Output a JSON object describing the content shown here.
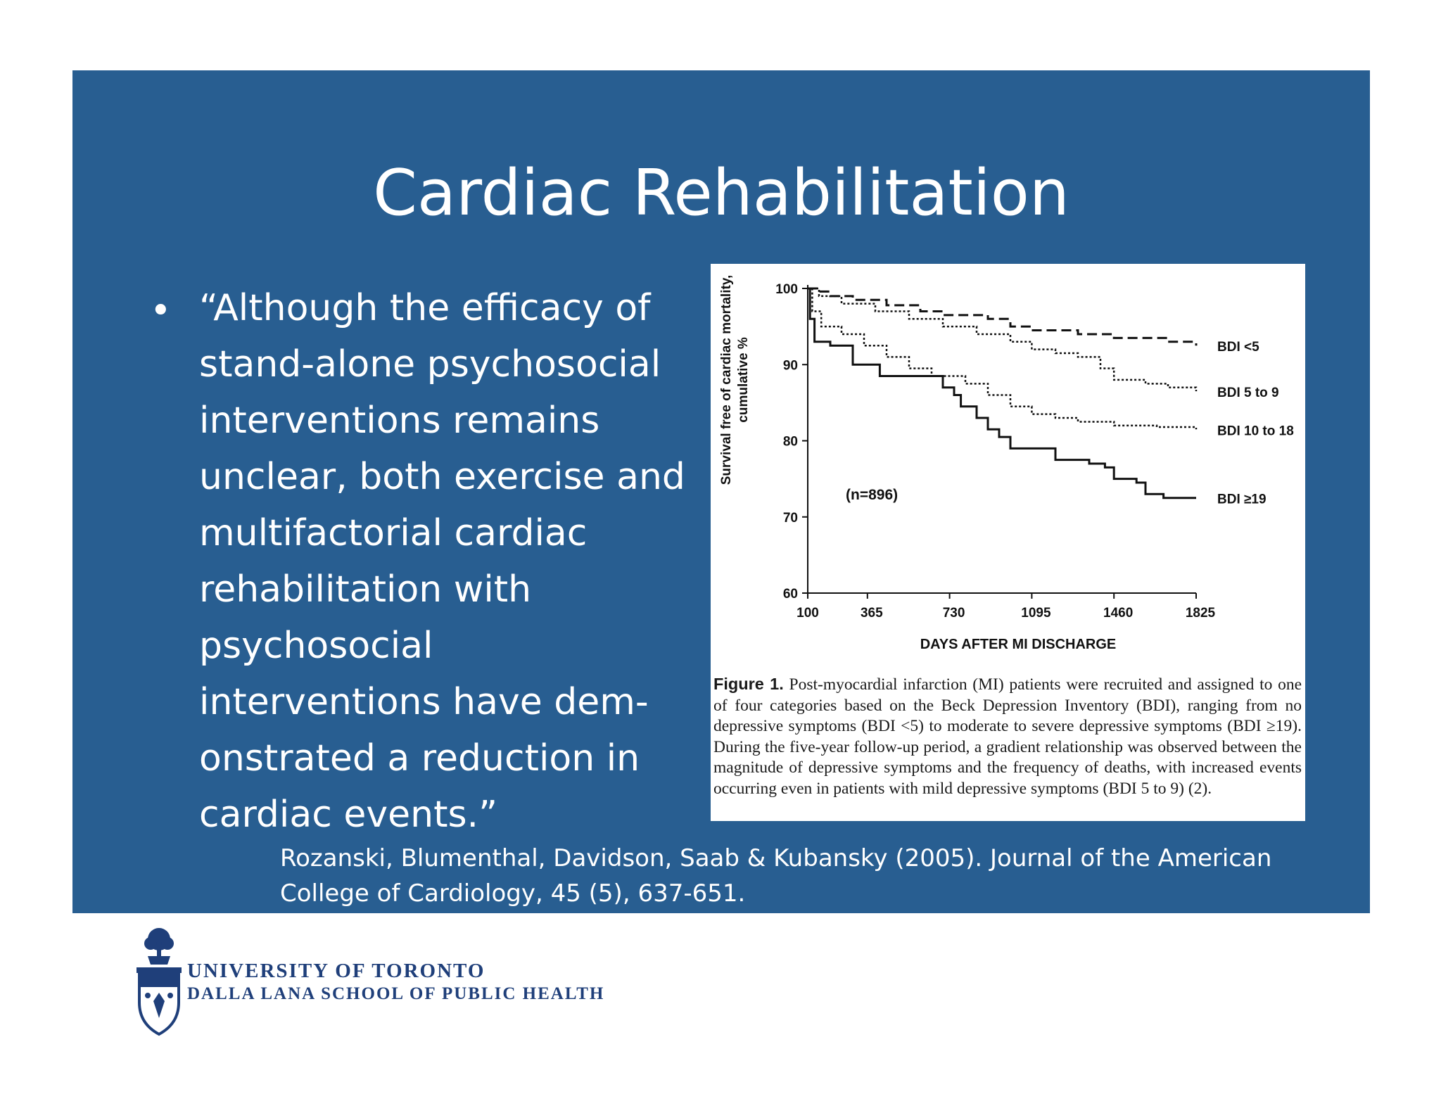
{
  "slide": {
    "title": "Cardiac Rehabilitation",
    "bullet_symbol": "•",
    "quote_lines": [
      "“Although the efficacy of",
      "stand-alone psychosocial",
      "interventions remains",
      "unclear, both exercise and",
      "multifactorial cardiac",
      "rehabilitation with",
      "psychosocial",
      "interventions have dem-",
      "onstrated a reduction in",
      "cardiac events.”"
    ],
    "citation_lines": [
      "Rozanski, Blumenthal, Davidson, Saab & Kubansky (2005). Journal of the American",
      "College of Cardiology, 45 (5), 637-651."
    ],
    "colors": {
      "panel": "#285e91",
      "text": "#ffffff",
      "logo": "#1f3f7a"
    }
  },
  "figure": {
    "caption_label": "Figure 1.",
    "caption_text": "Post-myocardial infarction (MI) patients were recruited and assigned to one of four categories based on the Beck Depression Inventory (BDI), ranging from no depressive symptoms (BDI <5) to moderate to severe depressive symptoms (BDI ≥19). During the five-year follow-up period, a gradient relationship was observed between the magnitude of depressive symptoms and the frequency of deaths, with increased events occurring even in patients with mild depressive symptoms (BDI 5 to 9) (2).",
    "n_label": "(n=896)"
  },
  "chart_data": {
    "type": "line",
    "title": "",
    "xlabel": "DAYS AFTER MI DISCHARGE",
    "ylabel": "Survival free of cardiac mortality, cumulative %",
    "xlim": [
      100,
      1825
    ],
    "ylim": [
      60,
      100
    ],
    "x_ticks": [
      100,
      365,
      730,
      1095,
      1460,
      1825
    ],
    "y_ticks": [
      60,
      70,
      80,
      90,
      100
    ],
    "grid": false,
    "series": [
      {
        "name": "BDI <5",
        "style": "dashed",
        "points": [
          [
            100,
            100
          ],
          [
            140,
            99.6
          ],
          [
            200,
            99
          ],
          [
            300,
            98.5
          ],
          [
            450,
            97.8
          ],
          [
            600,
            97
          ],
          [
            700,
            96.5
          ],
          [
            900,
            96
          ],
          [
            1000,
            95
          ],
          [
            1095,
            94.5
          ],
          [
            1300,
            94
          ],
          [
            1460,
            93.5
          ],
          [
            1700,
            93
          ],
          [
            1825,
            92.5
          ]
        ]
      },
      {
        "name": "BDI 5 to 9",
        "style": "dotted",
        "points": [
          [
            100,
            100
          ],
          [
            150,
            99
          ],
          [
            250,
            98
          ],
          [
            400,
            97
          ],
          [
            550,
            96
          ],
          [
            700,
            95
          ],
          [
            850,
            94
          ],
          [
            1000,
            93
          ],
          [
            1095,
            92
          ],
          [
            1200,
            91.5
          ],
          [
            1300,
            91
          ],
          [
            1400,
            89.5
          ],
          [
            1460,
            88
          ],
          [
            1600,
            87.5
          ],
          [
            1700,
            87
          ],
          [
            1825,
            86.5
          ]
        ]
      },
      {
        "name": "BDI 10 to 18",
        "style": "dotted",
        "points": [
          [
            100,
            100
          ],
          [
            120,
            97
          ],
          [
            160,
            95
          ],
          [
            250,
            94
          ],
          [
            350,
            92.5
          ],
          [
            450,
            91
          ],
          [
            550,
            89.5
          ],
          [
            650,
            88.5
          ],
          [
            800,
            87.5
          ],
          [
            900,
            86
          ],
          [
            1000,
            84.5
          ],
          [
            1095,
            83.5
          ],
          [
            1200,
            83
          ],
          [
            1300,
            82.5
          ],
          [
            1460,
            82
          ],
          [
            1650,
            81.8
          ],
          [
            1825,
            81.5
          ]
        ]
      },
      {
        "name": "BDI ≥19",
        "style": "solid",
        "points": [
          [
            100,
            100
          ],
          [
            110,
            96
          ],
          [
            130,
            93
          ],
          [
            200,
            92.5
          ],
          [
            300,
            90
          ],
          [
            420,
            88.5
          ],
          [
            600,
            88.5
          ],
          [
            700,
            87
          ],
          [
            750,
            86
          ],
          [
            780,
            84.5
          ],
          [
            850,
            83
          ],
          [
            900,
            81.5
          ],
          [
            950,
            80.5
          ],
          [
            1000,
            79
          ],
          [
            1100,
            79
          ],
          [
            1200,
            77.5
          ],
          [
            1350,
            77
          ],
          [
            1420,
            76.5
          ],
          [
            1460,
            75
          ],
          [
            1560,
            74.5
          ],
          [
            1600,
            73
          ],
          [
            1680,
            72.5
          ],
          [
            1825,
            72.5
          ]
        ]
      }
    ]
  },
  "logo": {
    "line1": "UNIVERSITY OF TORONTO",
    "line2": "DALLA LANA SCHOOL OF PUBLIC HEALTH"
  }
}
